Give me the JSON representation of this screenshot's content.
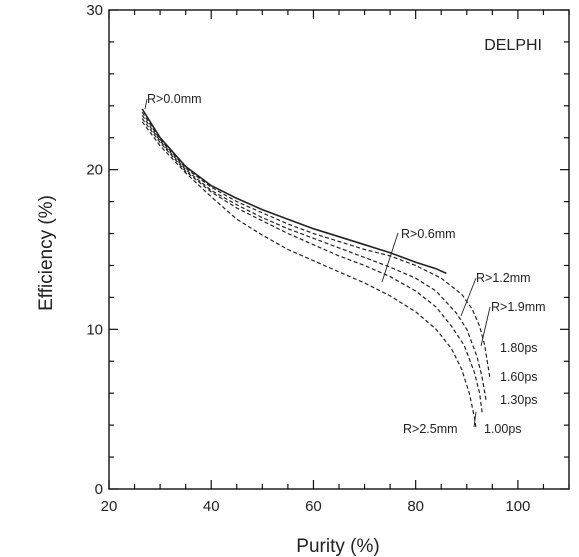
{
  "chart_data": {
    "type": "line",
    "title": "",
    "experiment_label": "DELPHI",
    "xlabel": "Purity (%)",
    "ylabel": "Efficiency (%)",
    "xlim": [
      20,
      110
    ],
    "ylim": [
      0,
      30
    ],
    "xticks": [
      20,
      40,
      60,
      80,
      100
    ],
    "yticks": [
      0,
      10,
      20,
      30
    ],
    "grid": false,
    "legend": "none",
    "series": [
      {
        "name": "R>0.0mm",
        "style": "solid",
        "x": [
          26.5,
          30,
          35,
          40,
          45,
          50,
          55,
          60,
          65,
          70,
          75,
          80,
          84,
          86
        ],
        "y": [
          23.8,
          22.0,
          20.2,
          19.0,
          18.2,
          17.5,
          16.9,
          16.3,
          15.8,
          15.3,
          14.8,
          14.2,
          13.8,
          13.5
        ]
      },
      {
        "name": "R>0.6mm",
        "style": "dashed",
        "x": [
          26.5,
          30,
          35,
          40,
          45,
          50,
          55,
          60,
          65,
          70,
          75,
          80,
          85,
          89,
          91,
          92.5,
          93.5,
          94.5
        ],
        "y": [
          23.6,
          21.9,
          20.1,
          18.9,
          18.0,
          17.3,
          16.6,
          16.0,
          15.5,
          15.0,
          14.6,
          14.0,
          13.2,
          12.2,
          11.3,
          10.2,
          9.0,
          7.0
        ]
      },
      {
        "name": "R>1.2mm",
        "style": "dashed",
        "x": [
          26.5,
          30,
          35,
          40,
          45,
          50,
          55,
          60,
          65,
          70,
          75,
          80,
          84,
          88,
          90,
          92,
          93,
          93.8
        ],
        "y": [
          23.4,
          21.8,
          20.0,
          18.7,
          17.8,
          17.0,
          16.3,
          15.7,
          15.1,
          14.5,
          13.9,
          13.2,
          12.4,
          11.0,
          10.0,
          8.3,
          7.0,
          5.5
        ]
      },
      {
        "name": "R>1.9mm",
        "style": "dashed",
        "x": [
          26.5,
          30,
          35,
          40,
          45,
          50,
          55,
          60,
          65,
          70,
          75,
          80,
          84,
          87,
          89.5,
          91.5,
          92.5,
          93
        ],
        "y": [
          23.2,
          21.7,
          19.9,
          18.6,
          17.6,
          16.8,
          16.0,
          15.3,
          14.6,
          14.0,
          13.3,
          12.4,
          11.4,
          10.2,
          9.0,
          7.3,
          6.0,
          4.8
        ]
      },
      {
        "name": "R>2.5mm",
        "style": "dashed",
        "x": [
          26.5,
          30,
          35,
          40,
          45,
          50,
          55,
          60,
          65,
          70,
          75,
          80,
          84,
          87,
          89,
          90.5,
          91.5,
          91.8
        ],
        "y": [
          23.0,
          21.5,
          19.8,
          18.3,
          16.9,
          15.9,
          15.0,
          14.3,
          13.6,
          12.9,
          12.1,
          11.1,
          10.0,
          8.8,
          7.5,
          6.0,
          4.5,
          3.8
        ]
      }
    ],
    "annotations": [
      {
        "text": "R>0.0mm"
      },
      {
        "text": "R>0.6mm"
      },
      {
        "text": "R>1.2mm"
      },
      {
        "text": "R>1.9mm"
      },
      {
        "text": "1.80ps"
      },
      {
        "text": "1.60ps"
      },
      {
        "text": "1.30ps"
      },
      {
        "text": "R>2.5mm"
      },
      {
        "text": "1.00ps"
      }
    ]
  }
}
